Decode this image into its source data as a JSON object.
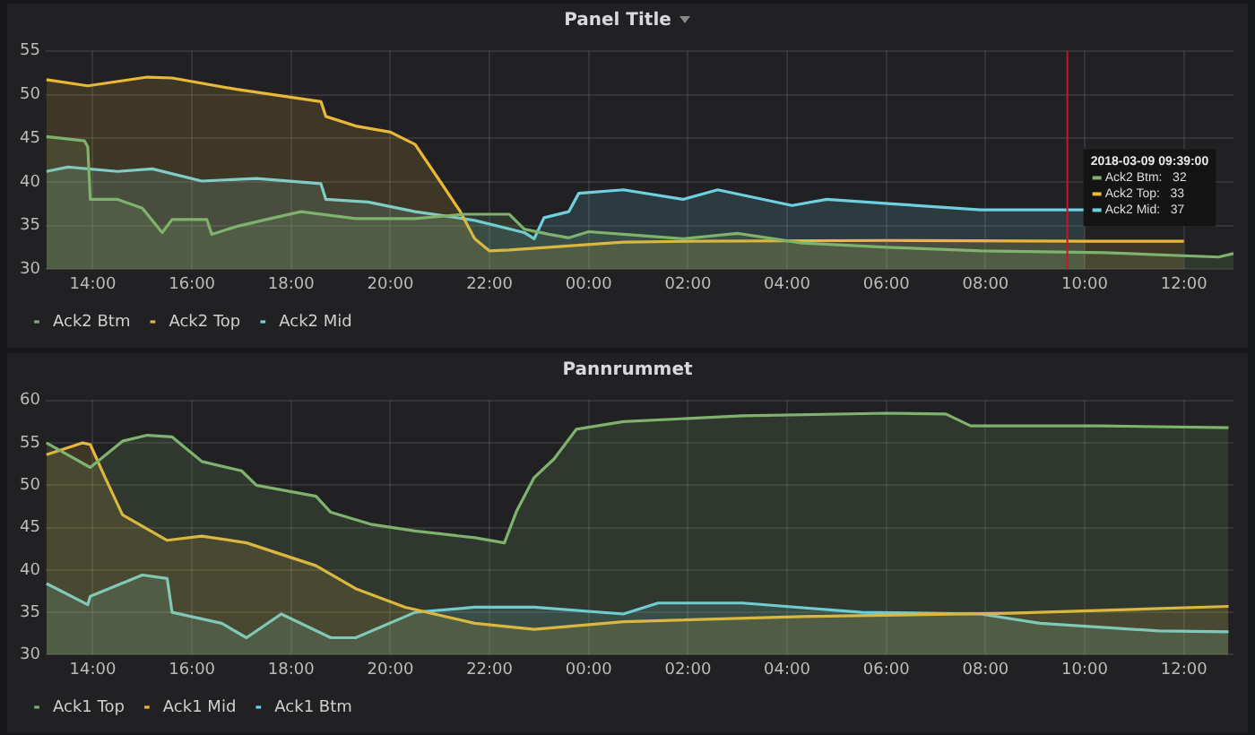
{
  "chart_data": [
    {
      "type": "area",
      "title": "Panel Title",
      "xlim": [
        "2018-03-08T13:03",
        "2018-03-09T13:00"
      ],
      "ylim": [
        30,
        55
      ],
      "yticks": [
        30,
        35,
        40,
        45,
        50,
        55
      ],
      "xticks": [
        {
          "value": "2018-03-08T14:00",
          "label": "14:00"
        },
        {
          "value": "2018-03-08T16:00",
          "label": "16:00"
        },
        {
          "value": "2018-03-08T18:00",
          "label": "18:00"
        },
        {
          "value": "2018-03-08T20:00",
          "label": "20:00"
        },
        {
          "value": "2018-03-08T22:00",
          "label": "22:00"
        },
        {
          "value": "2018-03-09T00:00",
          "label": "00:00"
        },
        {
          "value": "2018-03-09T02:00",
          "label": "02:00"
        },
        {
          "value": "2018-03-09T04:00",
          "label": "04:00"
        },
        {
          "value": "2018-03-09T06:00",
          "label": "06:00"
        },
        {
          "value": "2018-03-09T08:00",
          "label": "08:00"
        },
        {
          "value": "2018-03-09T10:00",
          "label": "10:00"
        },
        {
          "value": "2018-03-09T12:00",
          "label": "12:00"
        }
      ],
      "grid": true,
      "legend": "bottom left",
      "ref_lines": [
        {
          "axis": "x",
          "value": "2018-03-09T09:39",
          "label": "2018-03-09 09:39:00",
          "color": "#c4162a"
        }
      ],
      "annotations": [
        "Ack2 Btm:   32",
        "Ack2 Top:   33",
        "Ack2 Mid:   37"
      ],
      "series": [
        {
          "name": "Ack2 Btm",
          "color": "#7eb26d",
          "x": [
            "2018-03-08T13:04",
            "2018-03-08T13:50",
            "2018-03-08T13:54",
            "2018-03-08T13:57",
            "2018-03-08T14:30",
            "2018-03-08T15:00",
            "2018-03-08T15:24",
            "2018-03-08T15:36",
            "2018-03-08T16:18",
            "2018-03-08T16:24",
            "2018-03-08T16:54",
            "2018-03-08T17:30",
            "2018-03-08T18:12",
            "2018-03-08T19:18",
            "2018-03-08T20:30",
            "2018-03-08T21:30",
            "2018-03-08T22:24",
            "2018-03-08T22:42",
            "2018-03-08T23:12",
            "2018-03-08T23:36",
            "2018-03-09T00:00",
            "2018-03-09T00:42",
            "2018-03-09T01:54",
            "2018-03-09T03:00",
            "2018-03-09T04:18",
            "2018-03-09T06:06",
            "2018-03-09T07:54",
            "2018-03-09T10:24",
            "2018-03-09T12:42",
            "2018-03-09T13:00"
          ],
          "values": [
            45.2,
            44.7,
            44.0,
            38.0,
            38.0,
            37.0,
            34.2,
            35.7,
            35.7,
            34.0,
            34.9,
            35.7,
            36.6,
            35.8,
            35.8,
            36.3,
            36.3,
            34.6,
            34.0,
            33.6,
            34.3,
            34.0,
            33.5,
            34.1,
            33.0,
            32.5,
            32.1,
            31.9,
            31.4,
            31.8
          ]
        },
        {
          "name": "Ack2 Top",
          "color": "#eab839",
          "x": [
            "2018-03-08T13:04",
            "2018-03-08T13:54",
            "2018-03-08T15:06",
            "2018-03-08T15:36",
            "2018-03-08T16:54",
            "2018-03-08T18:36",
            "2018-03-08T18:42",
            "2018-03-08T19:18",
            "2018-03-08T20:00",
            "2018-03-08T20:30",
            "2018-03-08T21:00",
            "2018-03-08T21:24",
            "2018-03-08T21:42",
            "2018-03-08T22:00",
            "2018-03-08T22:24",
            "2018-03-09T00:42",
            "2018-03-09T02:00",
            "2018-03-09T06:00",
            "2018-03-09T10:00",
            "2018-03-09T12:00"
          ],
          "values": [
            51.7,
            51.0,
            52.0,
            51.9,
            50.6,
            49.2,
            47.5,
            46.4,
            45.7,
            44.3,
            40.1,
            36.7,
            33.5,
            32.1,
            32.2,
            33.1,
            33.2,
            33.3,
            33.2,
            33.2
          ]
        },
        {
          "name": "Ack2 Mid",
          "color": "#6ed0e0",
          "x": [
            "2018-03-08T13:04",
            "2018-03-08T13:30",
            "2018-03-08T14:30",
            "2018-03-08T15:12",
            "2018-03-08T16:12",
            "2018-03-08T17:18",
            "2018-03-08T18:36",
            "2018-03-08T18:42",
            "2018-03-08T19:33",
            "2018-03-08T20:30",
            "2018-03-08T21:42",
            "2018-03-08T22:42",
            "2018-03-08T22:54",
            "2018-03-08T23:06",
            "2018-03-08T23:36",
            "2018-03-08T23:48",
            "2018-03-09T00:42",
            "2018-03-09T01:54",
            "2018-03-09T02:36",
            "2018-03-09T04:06",
            "2018-03-09T04:48",
            "2018-03-09T06:06",
            "2018-03-09T07:54",
            "2018-03-09T10:00"
          ],
          "values": [
            41.2,
            41.7,
            41.2,
            41.5,
            40.1,
            40.4,
            39.8,
            38.0,
            37.7,
            36.6,
            35.6,
            34.2,
            33.5,
            35.9,
            36.6,
            38.7,
            39.1,
            38.0,
            39.1,
            37.3,
            38.0,
            37.5,
            36.8,
            36.8
          ]
        }
      ]
    },
    {
      "type": "area",
      "title": "Pannrummet",
      "xlim": [
        "2018-03-08T13:03",
        "2018-03-09T13:00"
      ],
      "ylim": [
        30,
        60
      ],
      "yticks": [
        30,
        35,
        40,
        45,
        50,
        55,
        60
      ],
      "xticks": [
        {
          "value": "2018-03-08T14:00",
          "label": "14:00"
        },
        {
          "value": "2018-03-08T16:00",
          "label": "16:00"
        },
        {
          "value": "2018-03-08T18:00",
          "label": "18:00"
        },
        {
          "value": "2018-03-08T20:00",
          "label": "20:00"
        },
        {
          "value": "2018-03-08T22:00",
          "label": "22:00"
        },
        {
          "value": "2018-03-09T00:00",
          "label": "00:00"
        },
        {
          "value": "2018-03-09T02:00",
          "label": "02:00"
        },
        {
          "value": "2018-03-09T04:00",
          "label": "04:00"
        },
        {
          "value": "2018-03-09T06:00",
          "label": "06:00"
        },
        {
          "value": "2018-03-09T08:00",
          "label": "08:00"
        },
        {
          "value": "2018-03-09T10:00",
          "label": "10:00"
        },
        {
          "value": "2018-03-09T12:00",
          "label": "12:00"
        }
      ],
      "grid": true,
      "legend": "bottom left",
      "series": [
        {
          "name": "Ack1 Top",
          "color": "#7eb26d",
          "x": [
            "2018-03-08T13:04",
            "2018-03-08T13:57",
            "2018-03-08T14:36",
            "2018-03-08T15:06",
            "2018-03-08T15:36",
            "2018-03-08T16:12",
            "2018-03-08T17:00",
            "2018-03-08T17:18",
            "2018-03-08T18:30",
            "2018-03-08T18:48",
            "2018-03-08T19:36",
            "2018-03-08T20:30",
            "2018-03-08T21:42",
            "2018-03-08T22:18",
            "2018-03-08T22:33",
            "2018-03-08T22:54",
            "2018-03-08T23:18",
            "2018-03-08T23:45",
            "2018-03-09T00:42",
            "2018-03-09T03:06",
            "2018-03-09T06:00",
            "2018-03-09T07:12",
            "2018-03-09T07:42",
            "2018-03-09T10:18",
            "2018-03-09T12:54"
          ],
          "values": [
            55.0,
            52.1,
            55.2,
            55.9,
            55.7,
            52.8,
            51.7,
            50.0,
            48.7,
            46.8,
            45.4,
            44.6,
            43.8,
            43.2,
            47.0,
            50.9,
            53.1,
            56.6,
            57.5,
            58.2,
            58.5,
            58.4,
            57.0,
            57.0,
            56.8
          ]
        },
        {
          "name": "Ack1 Mid",
          "color": "#eab839",
          "x": [
            "2018-03-08T13:04",
            "2018-03-08T13:48",
            "2018-03-08T13:57",
            "2018-03-08T14:15",
            "2018-03-08T14:36",
            "2018-03-08T15:30",
            "2018-03-08T16:12",
            "2018-03-08T17:06",
            "2018-03-08T18:30",
            "2018-03-08T19:18",
            "2018-03-08T20:18",
            "2018-03-08T21:42",
            "2018-03-08T22:54",
            "2018-03-09T00:42",
            "2018-03-09T04:18",
            "2018-03-09T08:30",
            "2018-03-09T12:54"
          ],
          "values": [
            53.6,
            55.0,
            54.8,
            50.9,
            46.5,
            43.5,
            44.0,
            43.2,
            40.5,
            37.8,
            35.6,
            33.7,
            33.0,
            33.9,
            34.5,
            34.9,
            35.7
          ]
        },
        {
          "name": "Ack1 Btm",
          "color": "#6ed0e0",
          "x": [
            "2018-03-08T13:04",
            "2018-03-08T13:54",
            "2018-03-08T13:57",
            "2018-03-08T15:00",
            "2018-03-08T15:30",
            "2018-03-08T15:36",
            "2018-03-08T16:36",
            "2018-03-08T17:06",
            "2018-03-08T17:48",
            "2018-03-08T18:48",
            "2018-03-08T19:18",
            "2018-03-08T20:30",
            "2018-03-08T21:42",
            "2018-03-08T22:54",
            "2018-03-09T00:42",
            "2018-03-09T01:24",
            "2018-03-09T03:06",
            "2018-03-09T05:30",
            "2018-03-09T07:54",
            "2018-03-09T09:06",
            "2018-03-09T11:30",
            "2018-03-09T12:54"
          ],
          "values": [
            38.4,
            35.9,
            36.9,
            39.4,
            39.0,
            35.0,
            33.7,
            32.0,
            34.8,
            32.0,
            32.0,
            35.0,
            35.6,
            35.6,
            34.8,
            36.1,
            36.1,
            35.0,
            34.8,
            33.7,
            32.8,
            32.7
          ]
        }
      ]
    }
  ]
}
